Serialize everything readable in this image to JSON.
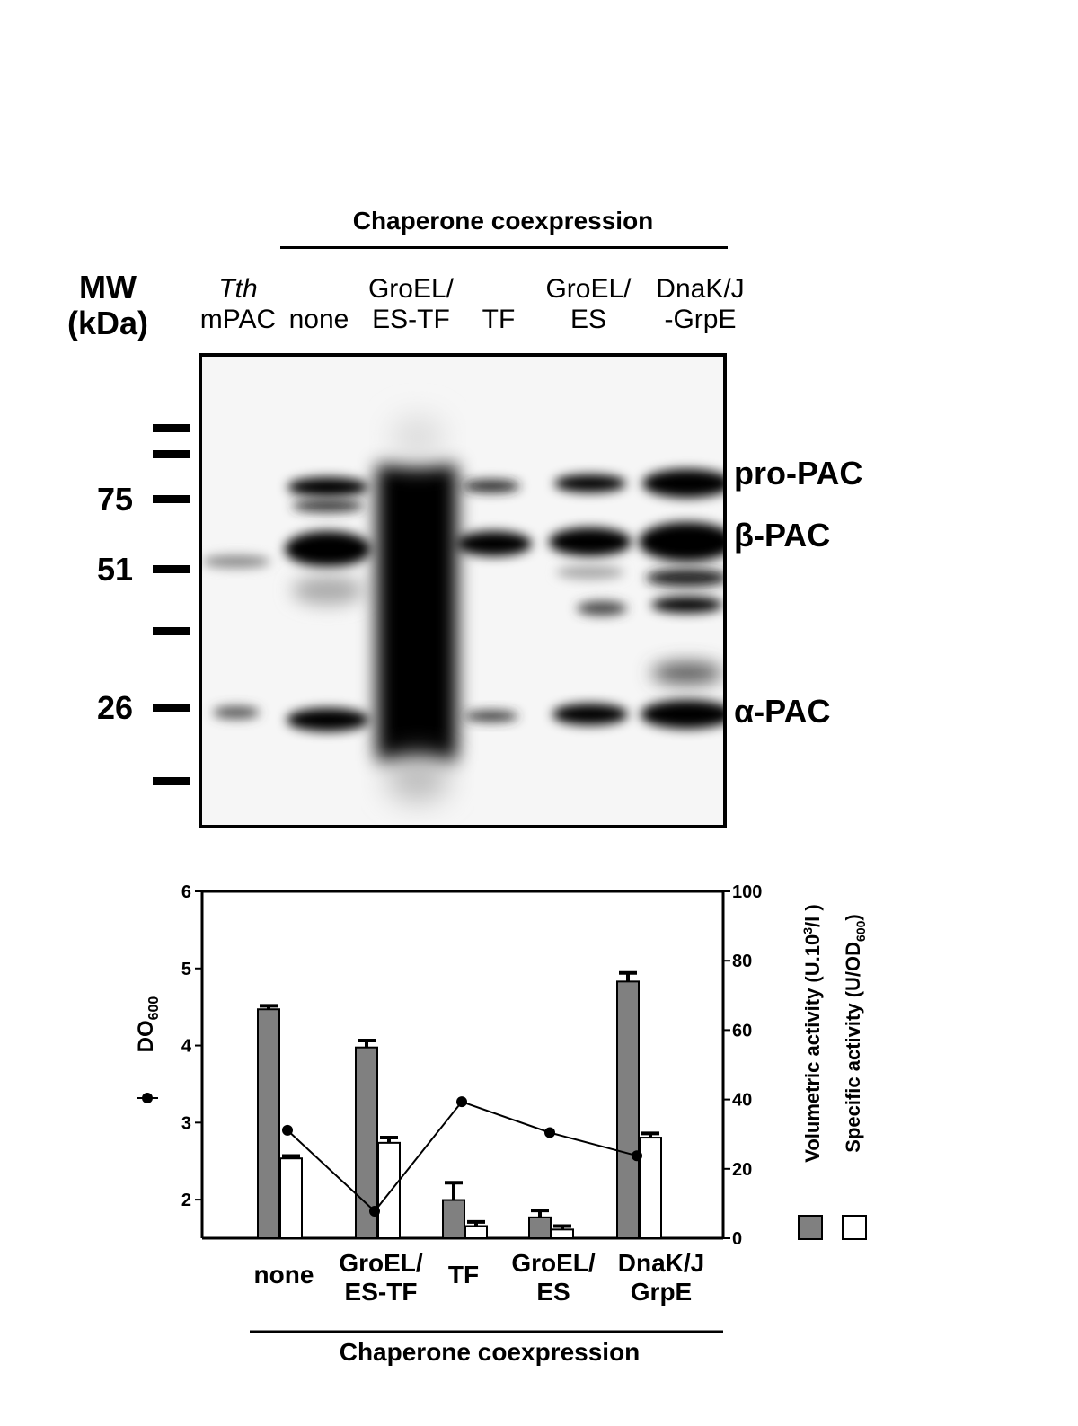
{
  "blot": {
    "header": "Chaperone coexpression",
    "mw_label_line1": "MW",
    "mw_label_line2": "(kDa)",
    "lanes": [
      {
        "line1": "Tth",
        "line2": "mPAC",
        "italic_line1": true
      },
      {
        "line1": "",
        "line2": "none"
      },
      {
        "line1": "GroEL/",
        "line2": "ES-TF"
      },
      {
        "line1": "",
        "line2": "TF"
      },
      {
        "line1": "GroEL/",
        "line2": "ES"
      },
      {
        "line1": "DnaK/J",
        "line2": "-GrpE"
      }
    ],
    "mw_markers": [
      "",
      "",
      "75",
      "51",
      "",
      "26",
      ""
    ],
    "band_labels": {
      "pro": "pro-PAC",
      "beta": "β-PAC",
      "alpha": "α-PAC"
    }
  },
  "chart_data": {
    "type": "bar",
    "categories": [
      "none",
      "GroEL/ES-TF",
      "TF",
      "GroEL/ES",
      "DnaK/J GrpE"
    ],
    "category_label_lines": [
      [
        "none"
      ],
      [
        "GroEL/",
        "ES-TF"
      ],
      [
        "TF"
      ],
      [
        "GroEL/",
        "ES"
      ],
      [
        "DnaK/J",
        "GrpE"
      ]
    ],
    "xlabel": "Chaperone coexpression",
    "left_axis": {
      "label_main": "DO",
      "label_sub": "600",
      "ylim": [
        1.5,
        6
      ],
      "ticks": [
        2,
        3,
        4,
        5,
        6
      ]
    },
    "right_axis": {
      "labels": [
        {
          "main": "Volumetric activity (U.10",
          "sup": "3",
          "tail": "/l )"
        },
        {
          "main": "Specific activity (U/OD",
          "sub": "600",
          "tail": ")"
        }
      ],
      "ylim": [
        0,
        100
      ],
      "ticks": [
        0,
        20,
        40,
        60,
        80,
        100
      ]
    },
    "series": [
      {
        "kind": "bar",
        "axis": "right",
        "color": "#808080",
        "values": [
          66,
          55,
          11,
          6,
          74
        ],
        "errors": [
          1,
          2,
          5,
          2,
          2.5
        ]
      },
      {
        "kind": "bar",
        "axis": "right",
        "color": "#ffffff",
        "values": [
          23,
          27.5,
          3.5,
          2.5,
          29
        ],
        "errors": [
          0.7,
          1.5,
          1.2,
          1,
          1.2
        ]
      },
      {
        "kind": "line",
        "axis": "left",
        "marker": "circle",
        "values": [
          2.9,
          1.85,
          3.27,
          2.87,
          2.57
        ]
      }
    ]
  }
}
